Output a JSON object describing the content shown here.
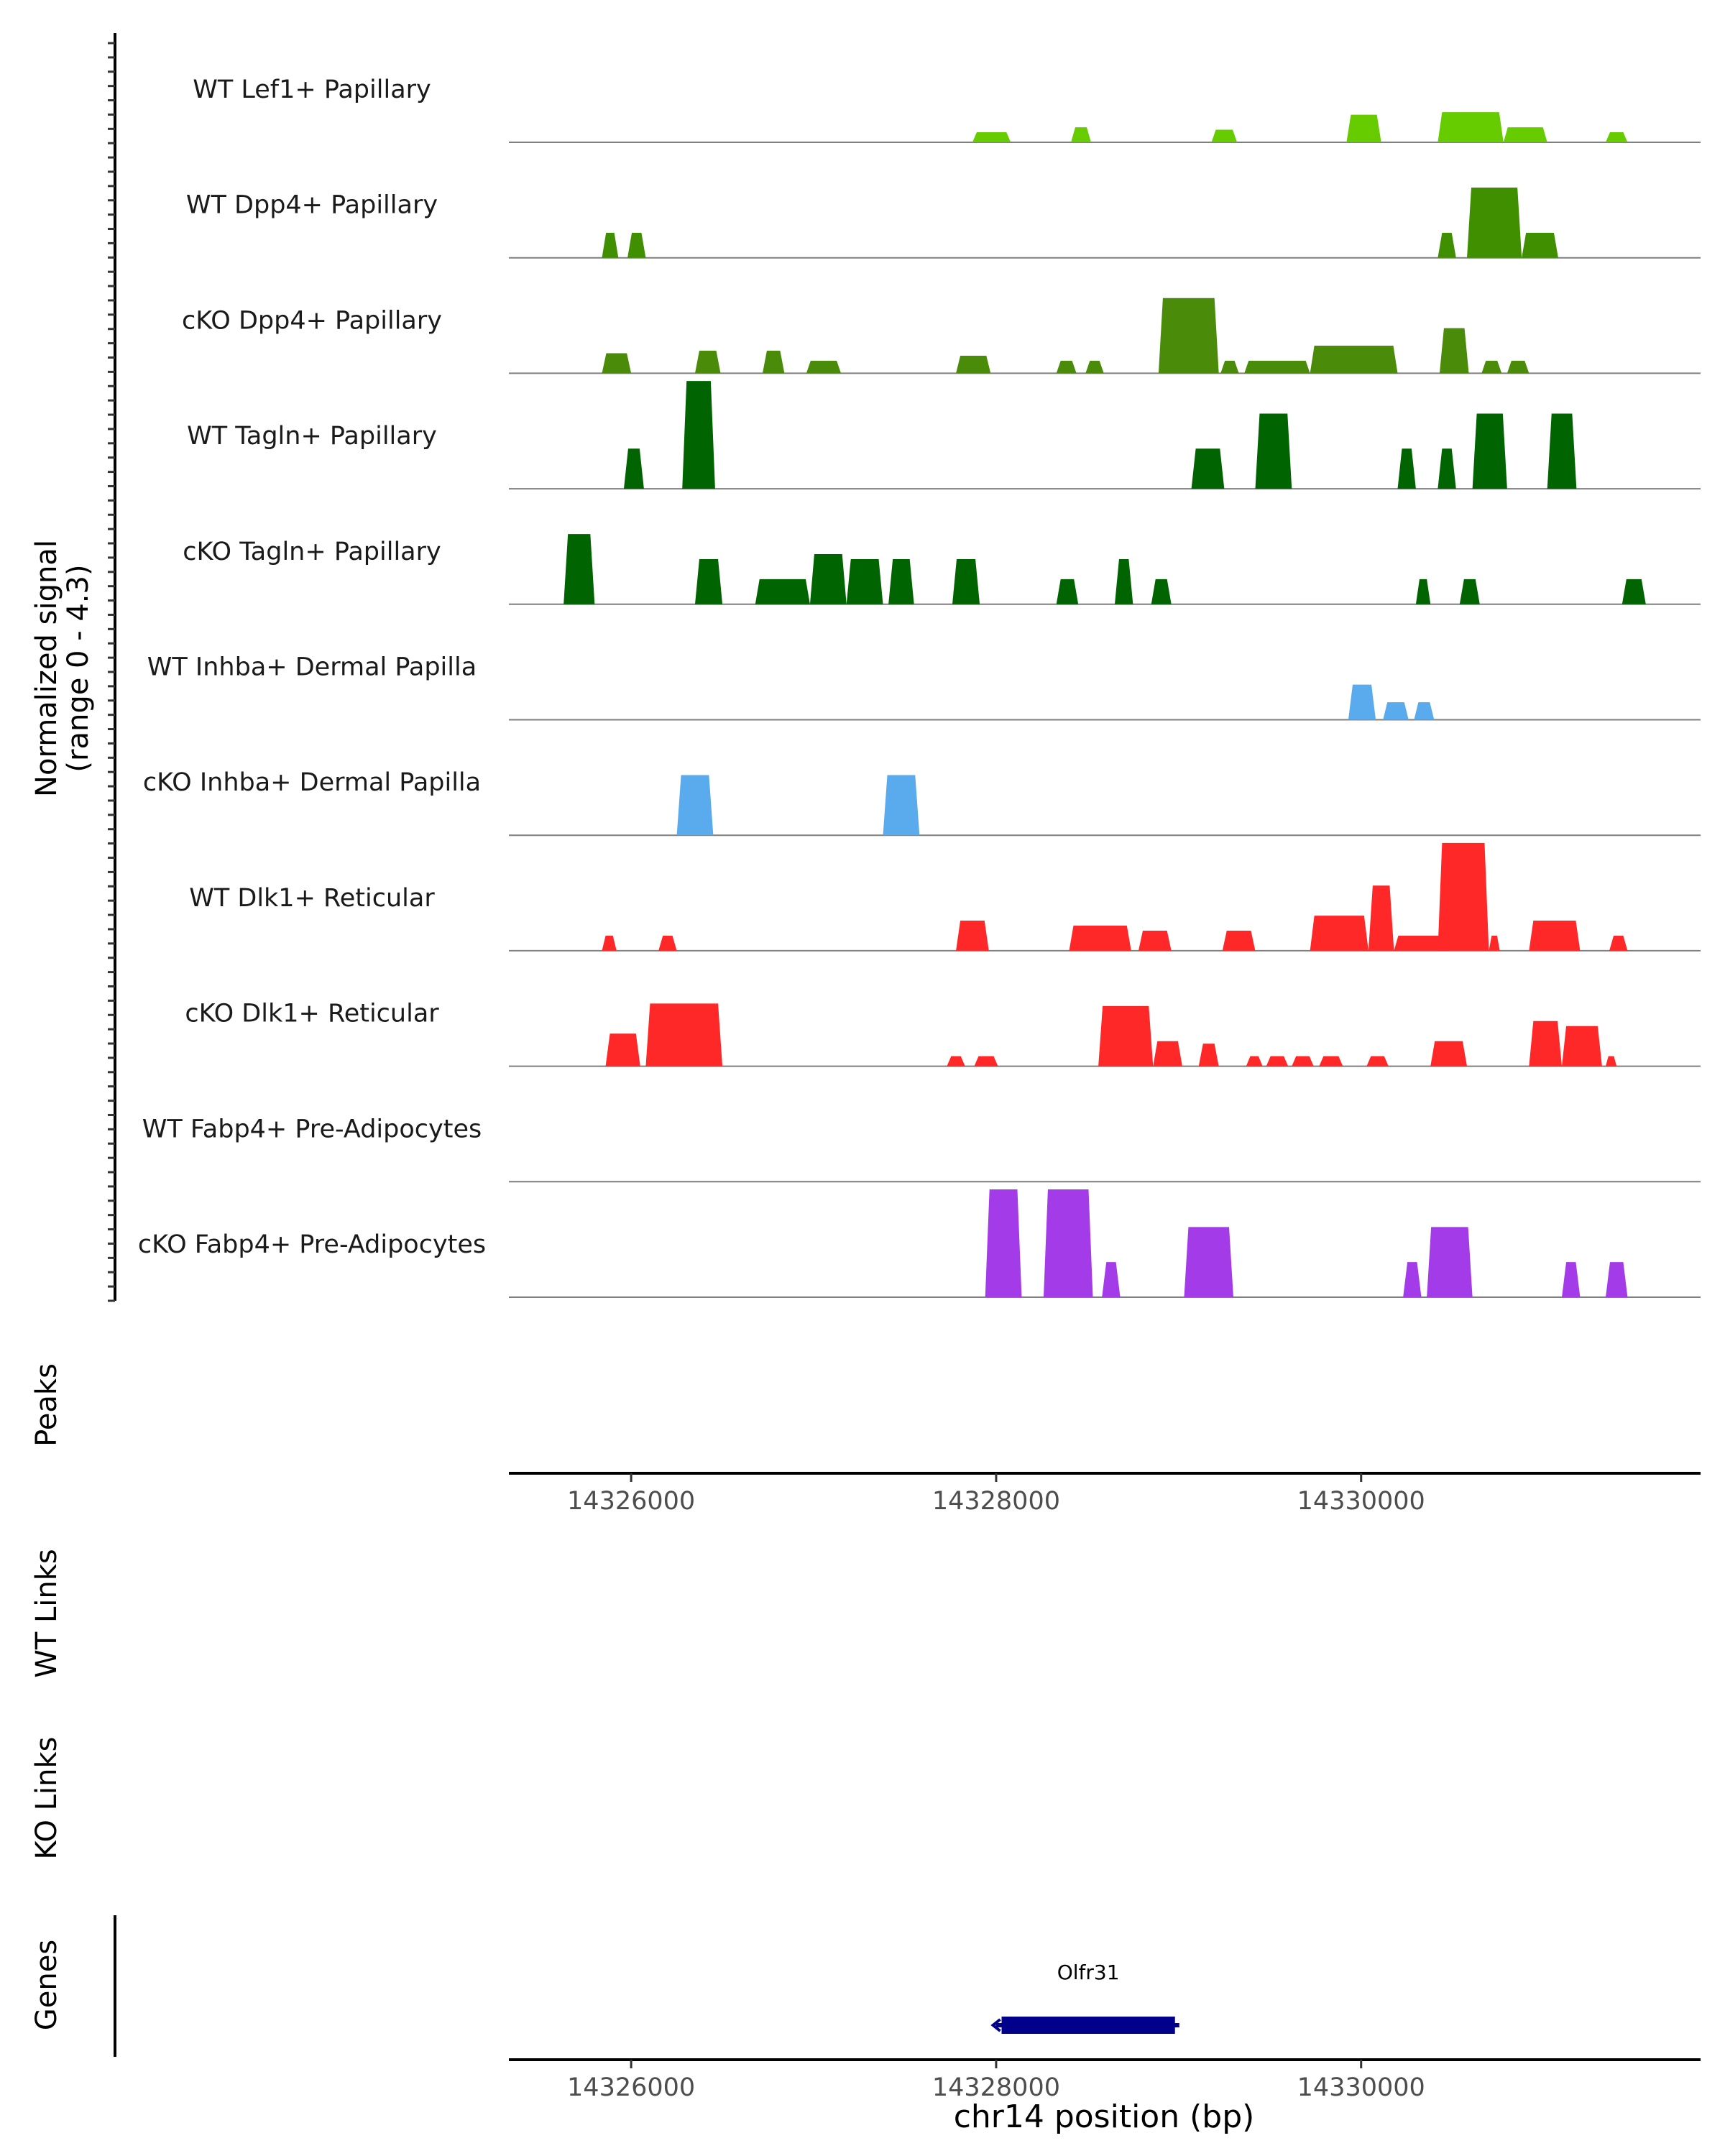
{
  "chart_data": {
    "type": "area",
    "title": "",
    "chromosome": "chr14",
    "signal_axis_label": "Normalized signal",
    "signal_axis_range_label": "(range 0 - 4.3)",
    "ylim": [
      0,
      4.3
    ],
    "xlim": [
      14325330,
      14331860
    ],
    "xlabel": "chr14 position (bp)",
    "x_ticks": [
      14326000,
      14328000,
      14330000
    ],
    "x_tick_labels": [
      "14326000",
      "14328000",
      "14330000"
    ],
    "tracks": [
      {
        "name": "WT Lef1+ Papillary",
        "color": "#66cc00",
        "segments": [
          [
            14327870,
            14328080,
            0.4
          ],
          [
            14328410,
            14328520,
            0.6
          ],
          [
            14329180,
            14329320,
            0.5
          ],
          [
            14329920,
            14330110,
            1.1
          ],
          [
            14330420,
            14330780,
            1.2
          ],
          [
            14330780,
            14331020,
            0.6
          ],
          [
            14331340,
            14331460,
            0.4
          ]
        ]
      },
      {
        "name": "WT Dpp4+ Papillary",
        "color": "#3f8f00",
        "segments": [
          [
            14325840,
            14325930,
            1.0
          ],
          [
            14325980,
            14326080,
            1.0
          ],
          [
            14330420,
            14330520,
            1.0
          ],
          [
            14330580,
            14330880,
            2.8
          ],
          [
            14330880,
            14331080,
            1.0
          ]
        ]
      },
      {
        "name": "cKO Dpp4+ Papillary",
        "color": "#4a8c0a",
        "segments": [
          [
            14325840,
            14326000,
            0.8
          ],
          [
            14326350,
            14326490,
            0.9
          ],
          [
            14326720,
            14326840,
            0.9
          ],
          [
            14326960,
            14327150,
            0.5
          ],
          [
            14327780,
            14327970,
            0.7
          ],
          [
            14328330,
            14328440,
            0.5
          ],
          [
            14328490,
            14328590,
            0.5
          ],
          [
            14328890,
            14329220,
            3.0
          ],
          [
            14329230,
            14329330,
            0.5
          ],
          [
            14329360,
            14329720,
            0.5
          ],
          [
            14329720,
            14330200,
            1.1
          ],
          [
            14330430,
            14330590,
            1.8
          ],
          [
            14330660,
            14330770,
            0.5
          ],
          [
            14330800,
            14330920,
            0.5
          ]
        ]
      },
      {
        "name": "WT Tagln+ Papillary",
        "color": "#006400",
        "segments": [
          [
            14325960,
            14326070,
            1.6
          ],
          [
            14326280,
            14326460,
            4.3
          ],
          [
            14329070,
            14329250,
            1.6
          ],
          [
            14329420,
            14329620,
            3.0
          ],
          [
            14330200,
            14330300,
            1.6
          ],
          [
            14330420,
            14330520,
            1.6
          ],
          [
            14330610,
            14330800,
            3.0
          ],
          [
            14331020,
            14331180,
            3.0
          ]
        ]
      },
      {
        "name": "cKO Tagln+ Papillary",
        "color": "#006400",
        "segments": [
          [
            14325630,
            14325800,
            2.8
          ],
          [
            14326350,
            14326500,
            1.8
          ],
          [
            14326680,
            14326980,
            1.0
          ],
          [
            14326980,
            14327180,
            2.0
          ],
          [
            14327180,
            14327380,
            1.8
          ],
          [
            14327410,
            14327550,
            1.8
          ],
          [
            14327760,
            14327910,
            1.8
          ],
          [
            14328330,
            14328450,
            1.0
          ],
          [
            14328650,
            14328750,
            1.8
          ],
          [
            14328850,
            14328960,
            1.0
          ],
          [
            14330300,
            14330380,
            1.0
          ],
          [
            14330540,
            14330650,
            1.0
          ],
          [
            14331430,
            14331560,
            1.0
          ]
        ]
      },
      {
        "name": "WT Inhba+ Dermal Papilla",
        "color": "#5aabed",
        "segments": [
          [
            14329930,
            14330080,
            1.4
          ],
          [
            14330120,
            14330260,
            0.7
          ],
          [
            14330290,
            14330400,
            0.7
          ]
        ]
      },
      {
        "name": "cKO Inhba+ Dermal Papilla",
        "color": "#5aabed",
        "segments": [
          [
            14326250,
            14326450,
            2.4
          ],
          [
            14327380,
            14327580,
            2.4
          ]
        ]
      },
      {
        "name": "WT Dlk1+ Reticular",
        "color": "#ff2828",
        "segments": [
          [
            14325840,
            14325920,
            0.6
          ],
          [
            14326150,
            14326250,
            0.6
          ],
          [
            14327780,
            14327960,
            1.2
          ],
          [
            14328400,
            14328740,
            1.0
          ],
          [
            14328780,
            14328960,
            0.8
          ],
          [
            14329240,
            14329420,
            0.8
          ],
          [
            14329720,
            14330040,
            1.4
          ],
          [
            14330040,
            14330180,
            2.6
          ],
          [
            14330180,
            14330480,
            0.6
          ],
          [
            14330420,
            14330700,
            4.3
          ],
          [
            14330700,
            14330760,
            0.6
          ],
          [
            14330920,
            14331200,
            1.2
          ],
          [
            14331360,
            14331460,
            0.6
          ]
        ]
      },
      {
        "name": "cKO Dlk1+ Reticular",
        "color": "#ff2828",
        "segments": [
          [
            14325860,
            14326050,
            1.3
          ],
          [
            14326080,
            14326500,
            2.5
          ],
          [
            14327730,
            14327830,
            0.4
          ],
          [
            14327880,
            14328010,
            0.4
          ],
          [
            14328560,
            14328860,
            2.4
          ],
          [
            14328860,
            14329020,
            1.0
          ],
          [
            14329110,
            14329220,
            0.9
          ],
          [
            14329370,
            14329460,
            0.4
          ],
          [
            14329480,
            14329600,
            0.4
          ],
          [
            14329620,
            14329740,
            0.4
          ],
          [
            14329770,
            14329900,
            0.4
          ],
          [
            14330030,
            14330150,
            0.4
          ],
          [
            14330380,
            14330580,
            1.0
          ],
          [
            14330920,
            14331100,
            1.8
          ],
          [
            14331100,
            14331320,
            1.6
          ],
          [
            14331340,
            14331400,
            0.4
          ]
        ]
      },
      {
        "name": "WT Fabp4+ Pre-Adipocytes",
        "color": "#a43be8",
        "segments": []
      },
      {
        "name": "cKO Fabp4+ Pre-Adipocytes",
        "color": "#a43be8",
        "segments": [
          [
            14327940,
            14328140,
            4.3
          ],
          [
            14328260,
            14328530,
            4.3
          ],
          [
            14328580,
            14328680,
            1.4
          ],
          [
            14329030,
            14329300,
            2.8
          ],
          [
            14330230,
            14330330,
            1.4
          ],
          [
            14330360,
            14330610,
            2.8
          ],
          [
            14331100,
            14331200,
            1.4
          ],
          [
            14331340,
            14331460,
            1.4
          ]
        ]
      }
    ],
    "empty_panel_labels": [
      "Peaks",
      "WT Links",
      "KO Links"
    ],
    "genes_panel_label": "Genes",
    "genes": [
      {
        "name": "Olfr31",
        "start": 14328030,
        "end": 14328980,
        "strand": "-",
        "color": "#00008b"
      }
    ]
  }
}
